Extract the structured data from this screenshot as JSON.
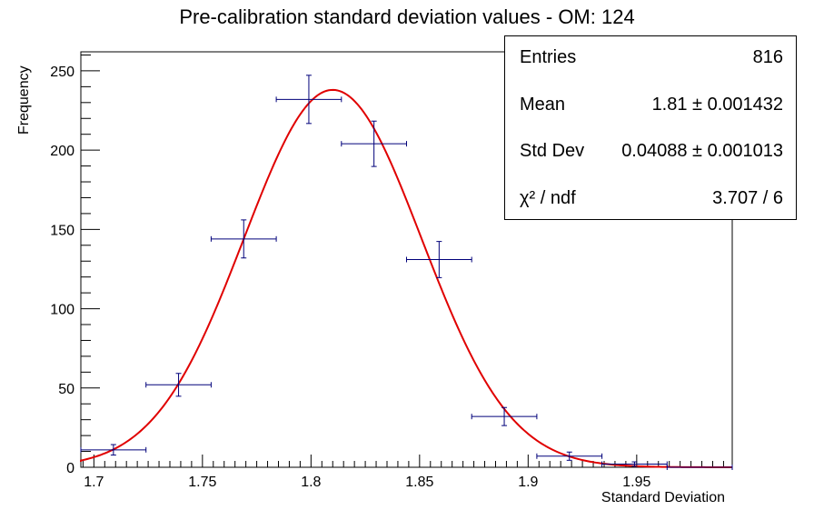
{
  "chart_data": {
    "type": "histogram-with-fit",
    "title": "Pre-calibration standard deviation values - OM: 124",
    "xlabel": "Standard Deviation",
    "ylabel": "Frequency",
    "xlim": [
      1.694,
      1.994
    ],
    "ylim": [
      0,
      262
    ],
    "x_ticks": [
      "1.7",
      "1.75",
      "1.8",
      "1.85",
      "1.9",
      "1.95"
    ],
    "y_ticks": [
      "0",
      "50",
      "100",
      "150",
      "200",
      "250"
    ],
    "bin_width": 0.03,
    "points": [
      {
        "x": 1.709,
        "y": 11,
        "err": 3.3
      },
      {
        "x": 1.739,
        "y": 52,
        "err": 7.2
      },
      {
        "x": 1.769,
        "y": 144,
        "err": 12
      },
      {
        "x": 1.799,
        "y": 232,
        "err": 15.2
      },
      {
        "x": 1.829,
        "y": 204,
        "err": 14.3
      },
      {
        "x": 1.859,
        "y": 131,
        "err": 11.4
      },
      {
        "x": 1.889,
        "y": 32,
        "err": 5.7
      },
      {
        "x": 1.919,
        "y": 7,
        "err": 2.6
      },
      {
        "x": 1.949,
        "y": 2,
        "err": 1.4
      },
      {
        "x": 1.979,
        "y": 0,
        "err": 0
      }
    ],
    "fit": {
      "type": "gaussian",
      "amplitude": 238,
      "mean": 1.81,
      "sigma": 0.04088
    },
    "colors": {
      "points": "#00007a",
      "fit": "#e00000"
    },
    "stats": {
      "entries_label": "Entries",
      "entries": "816",
      "mean_label": "Mean",
      "mean": "1.81 ± 0.001432",
      "std_label": "Std Dev",
      "std": "0.04088 ± 0.001013",
      "chi_label": "χ² / ndf",
      "chi": "3.707 / 6"
    }
  }
}
